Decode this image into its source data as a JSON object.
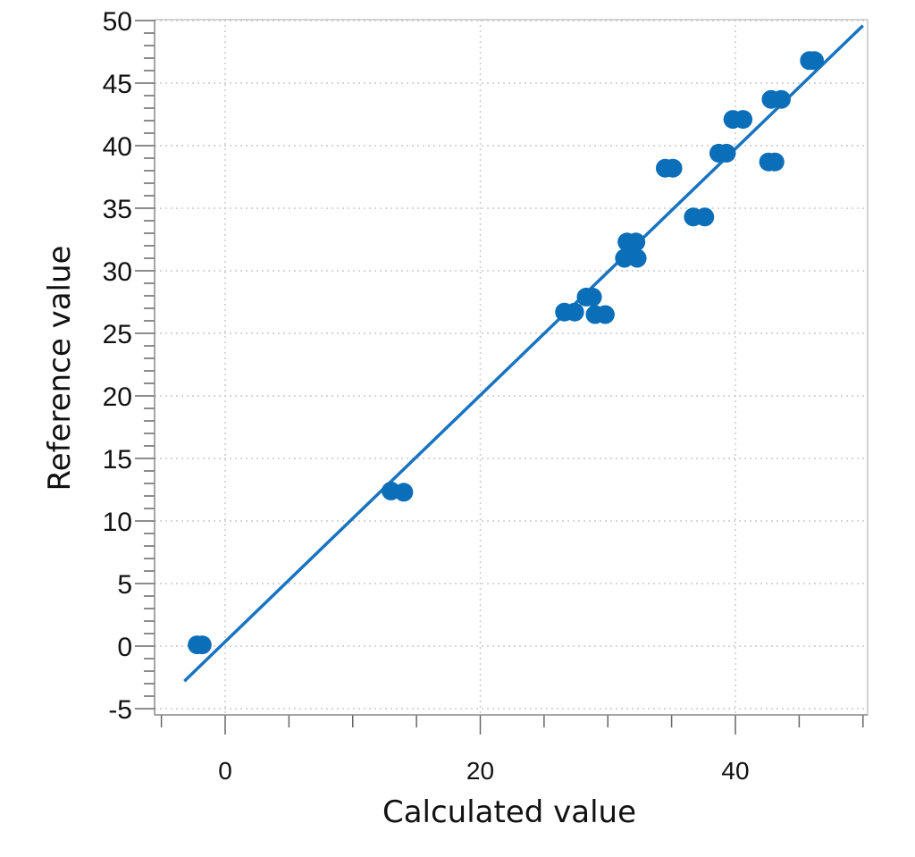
{
  "chart_data": {
    "type": "scatter",
    "title": "",
    "xlabel": "Calculated value",
    "ylabel": "Reference value",
    "xlim": [
      -4,
      50
    ],
    "ylim": [
      -5.5,
      50
    ],
    "x_ticks": [
      0,
      20,
      40
    ],
    "y_ticks": [
      -5,
      0,
      5,
      10,
      15,
      20,
      25,
      30,
      35,
      40,
      45,
      50
    ],
    "grid": true,
    "legend": "none",
    "colors": {
      "points": "#0b6eb8",
      "line": "#1874c0",
      "grid": "#c8c8c8",
      "axis": "#888888"
    },
    "series": [
      {
        "points": [
          [
            -2.2,
            0.1
          ],
          [
            -1.8,
            0.1
          ],
          [
            13.0,
            12.4
          ],
          [
            14.0,
            12.3
          ],
          [
            26.6,
            26.7
          ],
          [
            27.4,
            26.7
          ],
          [
            28.3,
            27.9
          ],
          [
            28.8,
            27.9
          ],
          [
            29.0,
            26.5
          ],
          [
            29.8,
            26.5
          ],
          [
            31.3,
            31.0
          ],
          [
            32.3,
            31.0
          ],
          [
            31.5,
            32.3
          ],
          [
            32.2,
            32.3
          ],
          [
            34.5,
            38.2
          ],
          [
            35.1,
            38.2
          ],
          [
            36.7,
            34.3
          ],
          [
            37.6,
            34.3
          ],
          [
            38.7,
            39.4
          ],
          [
            39.3,
            39.4
          ],
          [
            39.8,
            42.1
          ],
          [
            40.6,
            42.1
          ],
          [
            42.6,
            38.7
          ],
          [
            43.1,
            38.7
          ],
          [
            42.8,
            43.7
          ],
          [
            43.6,
            43.7
          ],
          [
            45.8,
            46.8
          ],
          [
            46.2,
            46.8
          ]
        ]
      }
    ],
    "trend_line": {
      "x": [
        -3.2,
        50
      ],
      "y": [
        -2.8,
        49.6
      ]
    }
  }
}
